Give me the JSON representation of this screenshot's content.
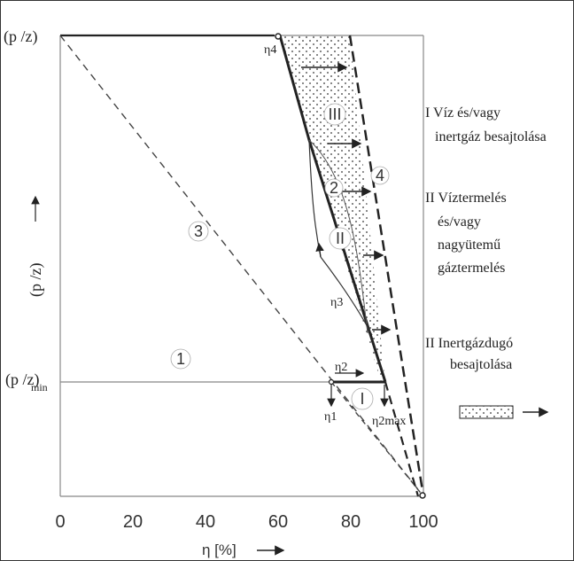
{
  "figure": {
    "y_top_label": "(p /z)",
    "y_min_label": "(p /z)",
    "y_min_subscript": "min",
    "y_axis_title": "(p /z)",
    "x_axis_label": "η [%]",
    "x_ticks": [
      "0",
      "20",
      "40",
      "60",
      "80",
      "100"
    ],
    "eta_labels": {
      "eta4": "η4",
      "eta3": "η3",
      "eta2": "η2",
      "eta1": "η1",
      "eta2max": "η2max"
    },
    "numbered_lines": [
      "1",
      "2",
      "3",
      "4"
    ],
    "roman_regions": [
      "I",
      "II",
      "III"
    ],
    "legend_right": {
      "item1_line1": "I Víz és/vagy",
      "item1_line2": "inertgáz besajtolása",
      "item2_line1": "II Víztermelés",
      "item2_line2": "és/vagy",
      "item2_line3": "nagyütemű",
      "item2_line4": "gáztermelés",
      "item3_line1": "II Inertgázdugó",
      "item3_line2": "besajtolása"
    },
    "colors": {
      "ink": "#222222",
      "frame": "#888888",
      "dots": "#333333"
    }
  }
}
